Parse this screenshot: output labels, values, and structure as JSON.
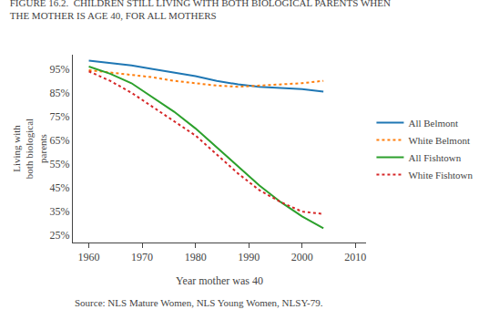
{
  "chart_data": {
    "type": "line",
    "title": "FIGURE 16.2.  CHILDREN STILL LIVING WITH BOTH BIOLOGICAL PARENTS WHEN\nTHE MOTHER IS AGE 40, FOR ALL MOTHERS",
    "annotations": [
      "Source: NLS Mature Women, NLS Young Women, NLSY-79."
    ],
    "x_label": "Year mother was 40",
    "y_label": "Living with\nboth biological\nparents",
    "x": [
      1960,
      1964,
      1968,
      1972,
      1976,
      1980,
      1984,
      1988,
      1992,
      1996,
      2000,
      2004
    ],
    "series": [
      {
        "name": "All Belmont",
        "line_style": "solid",
        "values": [
          98.5,
          97.5,
          96.5,
          95,
          93.5,
          92,
          90,
          88.5,
          87.5,
          87,
          86.5,
          85.5
        ]
      },
      {
        "name": "White Belmont",
        "line_style": "dotted",
        "values": [
          94.5,
          93.5,
          92.5,
          91.5,
          90,
          89,
          88,
          87.5,
          88,
          88.5,
          89,
          90
        ]
      },
      {
        "name": "All Fishtown",
        "line_style": "solid",
        "values": [
          96,
          93,
          89,
          83,
          77,
          70,
          62,
          54,
          46,
          39,
          33,
          28
        ]
      },
      {
        "name": "White Fishtown",
        "line_style": "dotted",
        "values": [
          94,
          90,
          85,
          79,
          73,
          67,
          59,
          51,
          44,
          39,
          35,
          34
        ]
      }
    ],
    "xlim": [
      1957,
      2012
    ],
    "xticks": [
      1960,
      1970,
      1980,
      1990,
      2000,
      2010
    ],
    "ylim": [
      22,
      101
    ],
    "yticks": [
      {
        "value": 25,
        "label": "25%"
      },
      {
        "value": 35,
        "label": "35%"
      },
      {
        "value": 45,
        "label": "45%"
      },
      {
        "value": 55,
        "label": "55%"
      },
      {
        "value": 65,
        "label": "65%"
      },
      {
        "value": 75,
        "label": "75%"
      },
      {
        "value": 85,
        "label": "85%"
      },
      {
        "value": 95,
        "label": "95%"
      }
    ],
    "grid": false,
    "legend": "right"
  }
}
